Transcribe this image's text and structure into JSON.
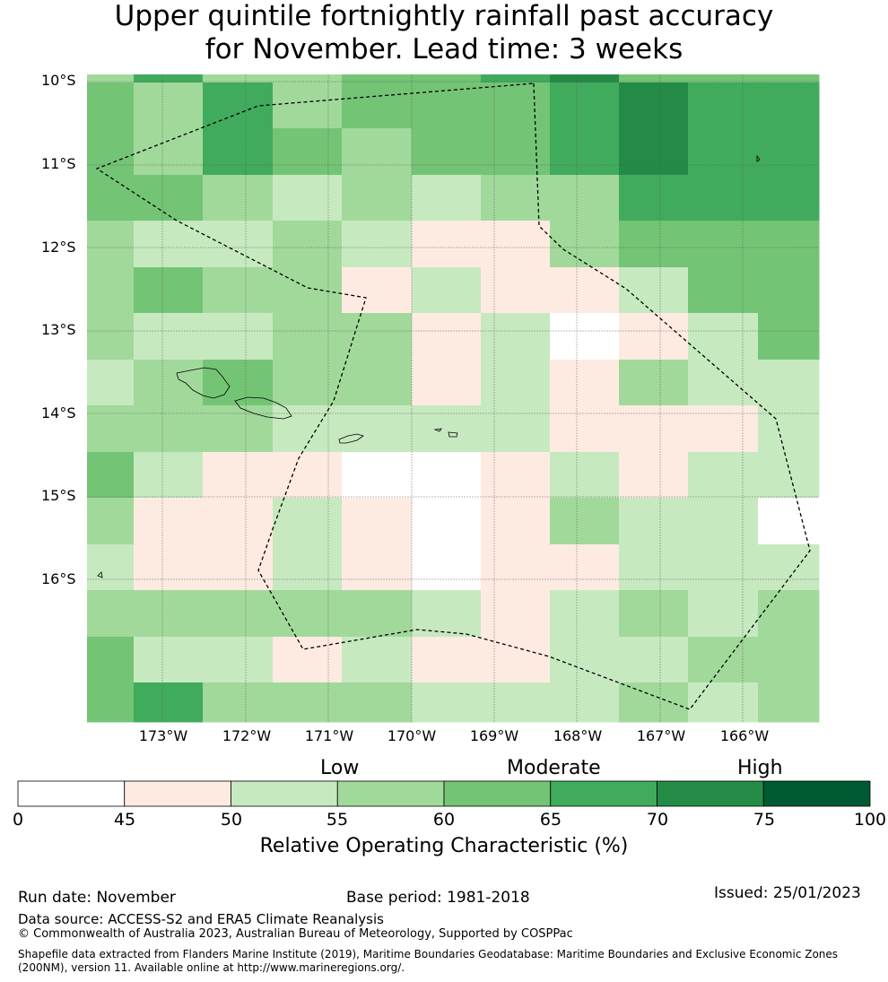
{
  "title_line1": "Upper quintile fortnightly rainfall past accuracy",
  "title_line2": "for November. Lead time: 3 weeks",
  "lat_labels": [
    "10°S",
    "11°S",
    "12°S",
    "13°S",
    "14°S",
    "15°S",
    "16°S"
  ],
  "lon_labels": [
    "173°W",
    "172°W",
    "171°W",
    "170°W",
    "169°W",
    "168°W",
    "167°W",
    "166°W"
  ],
  "colorbar": {
    "categories": [
      "Low",
      "Moderate",
      "High"
    ],
    "ticks": [
      "0",
      "45",
      "50",
      "55",
      "60",
      "65",
      "70",
      "75",
      "100"
    ],
    "colors": [
      "#ffffff",
      "#fdebe2",
      "#c7e9c0",
      "#a1d99b",
      "#74c476",
      "#41ab5d",
      "#238b45",
      "#005a32"
    ],
    "label": "Relative Operating Characteristic (%)"
  },
  "grid_values": [
    [
      3,
      5,
      3,
      3,
      4,
      4,
      5,
      6,
      4,
      4
    ],
    [
      4,
      3,
      5,
      3,
      4,
      4,
      4,
      5,
      6,
      5
    ],
    [
      4,
      3,
      5,
      4,
      3,
      4,
      4,
      5,
      6,
      5
    ],
    [
      4,
      4,
      3,
      2,
      3,
      2,
      3,
      3,
      5,
      5
    ],
    [
      3,
      2,
      2,
      3,
      2,
      1,
      1,
      3,
      4,
      4
    ],
    [
      3,
      4,
      3,
      3,
      1,
      2,
      1,
      1,
      2,
      4
    ],
    [
      3,
      2,
      2,
      3,
      3,
      1,
      2,
      0,
      1,
      2,
      4
    ],
    [
      2,
      3,
      4,
      3,
      3,
      1,
      2,
      1,
      3,
      2,
      2
    ],
    [
      3,
      3,
      3,
      2,
      2,
      2,
      2,
      1,
      1,
      1,
      2
    ],
    [
      4,
      2,
      1,
      1,
      0,
      0,
      1,
      2,
      1,
      2,
      2
    ],
    [
      3,
      1,
      1,
      2,
      1,
      0,
      1,
      3,
      2,
      2,
      0
    ],
    [
      2,
      1,
      1,
      2,
      1,
      0,
      1,
      1,
      2,
      2,
      2
    ],
    [
      3,
      3,
      3,
      3,
      3,
      2,
      1,
      2,
      3,
      2,
      3
    ],
    [
      4,
      2,
      2,
      1,
      2,
      1,
      1,
      2,
      2,
      3,
      3
    ],
    [
      4,
      5,
      3,
      3,
      3,
      2,
      2,
      2,
      3,
      2,
      3
    ]
  ],
  "footer": {
    "run_date": "Run date: November",
    "base_period": "Base period: 1981-2018",
    "issued": "Issued: 25/01/2023",
    "data_source": "Data source: ACCESS-S2 and ERA5 Climate Reanalysis",
    "copyright": "© Commonwealth of Australia 2023, Australian Bureau of Meteorology, Supported by COSPPac",
    "shapefile": "Shapefile data extracted from Flanders Marine Institute (2019), Maritime Boundaries Geodatabase: Maritime Boundaries and Exclusive Economic Zones (200NM), version 11. Available online at http://www.marineregions.org/."
  }
}
